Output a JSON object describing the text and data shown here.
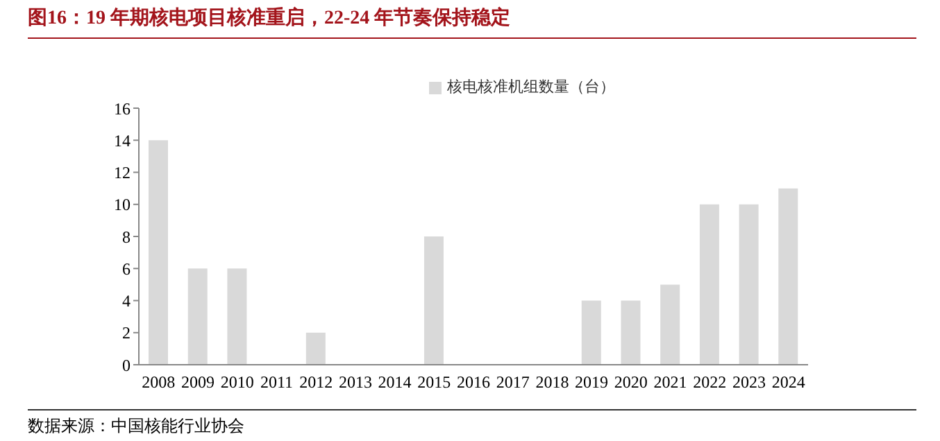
{
  "chart_data": {
    "type": "bar",
    "title": "图16：19 年期核电项目核准重启，22-24 年节奏保持稳定",
    "categories": [
      "2008",
      "2009",
      "2010",
      "2011",
      "2012",
      "2013",
      "2014",
      "2015",
      "2016",
      "2017",
      "2018",
      "2019",
      "2020",
      "2021",
      "2022",
      "2023",
      "2024"
    ],
    "series": [
      {
        "name": "核电核准机组数量（台）",
        "color": "#d9d9d9",
        "values": [
          14,
          6,
          6,
          0,
          2,
          0,
          0,
          8,
          0,
          0,
          0,
          4,
          4,
          5,
          10,
          10,
          11
        ]
      }
    ],
    "ylim": [
      0,
      16
    ],
    "yticks": [
      0,
      2,
      4,
      6,
      8,
      10,
      12,
      14,
      16
    ],
    "legend": "top",
    "annotations": [
      "数据来源：中国核能行业协会"
    ]
  }
}
